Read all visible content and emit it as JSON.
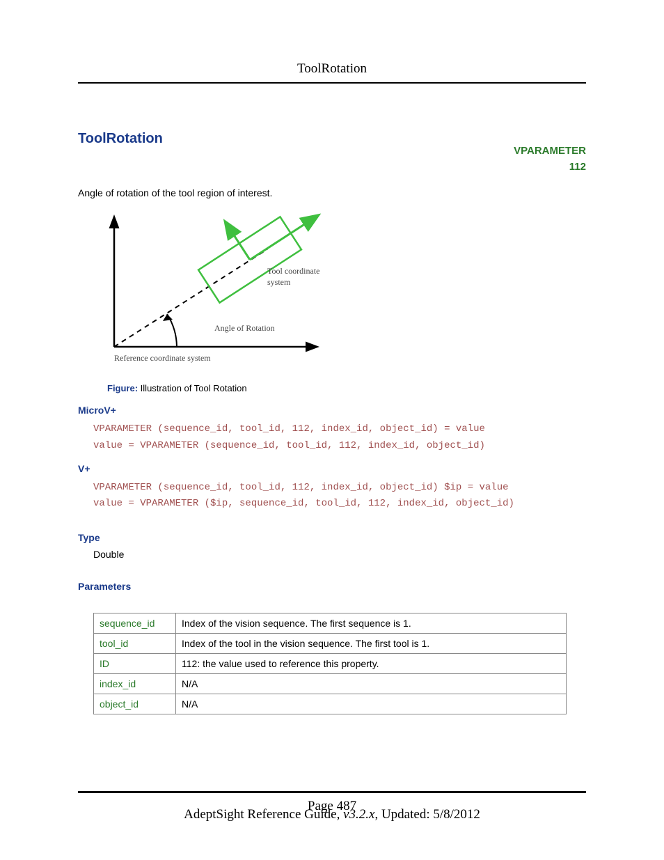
{
  "header": {
    "running_title": "ToolRotation"
  },
  "title": "ToolRotation",
  "tag": {
    "line1": "VPARAMETER",
    "line2": "112"
  },
  "description": "Angle of rotation of the tool region of interest.",
  "figure": {
    "labels": {
      "tool_coord_l1": "Tool coordinate",
      "tool_coord_l2": "system",
      "angle": "Angle of Rotation",
      "ref": "Reference coordinate system"
    },
    "colors": {
      "axes": "#000000",
      "dashed": "#000000",
      "rect": "#3fbf3f",
      "rect_arrow": "#3fbf3f",
      "label_text": "#444444"
    },
    "caption_label": "Figure:",
    "caption_text": " Illustration of Tool Rotation"
  },
  "sections": {
    "microv": {
      "heading": "MicroV+",
      "code": "VPARAMETER (sequence_id, tool_id, 112, index_id, object_id) = value\nvalue = VPARAMETER (sequence_id, tool_id, 112, index_id, object_id)"
    },
    "vplus": {
      "heading": "V+",
      "code": "VPARAMETER (sequence_id, tool_id, 112, index_id, object_id) $ip = value\nvalue = VPARAMETER ($ip, sequence_id, tool_id, 112, index_id, object_id)"
    },
    "type": {
      "heading": "Type",
      "value": "Double"
    },
    "parameters": {
      "heading": "Parameters",
      "rows": [
        {
          "name": "sequence_id",
          "desc": "Index of the vision sequence. The first sequence is 1."
        },
        {
          "name": "tool_id",
          "desc": "Index of the tool in the vision sequence. The first tool is 1."
        },
        {
          "name": "ID",
          "desc": "112: the value used to reference this property."
        },
        {
          "name": "index_id",
          "desc": "N/A"
        },
        {
          "name": "object_id",
          "desc": "N/A"
        }
      ]
    }
  },
  "footer": {
    "guide": "AdeptSight Reference Guide",
    "version": ", v3.2.x",
    "updated": ", Updated: 5/8/2012",
    "page": "Page 487"
  }
}
